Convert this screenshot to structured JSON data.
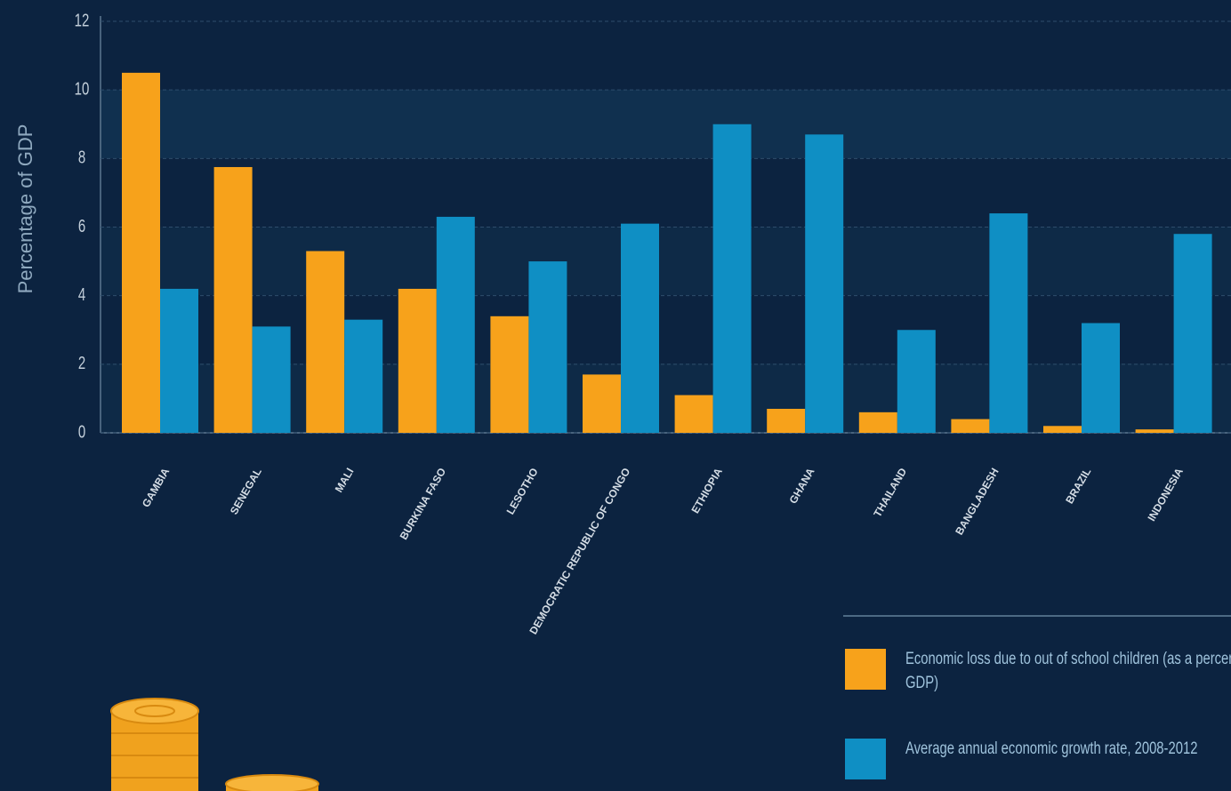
{
  "chart_data": {
    "type": "bar",
    "y_label": "Percentage of GDP",
    "categories": [
      "GAMBIA",
      "SENEGAL",
      "MALI",
      "BURKINA FASO",
      "LESOTHO",
      "DEMOCRATIC REPUBLIC OF CONGO",
      "ETHIOPIA",
      "GHANA",
      "THAILAND",
      "BANGLADESH",
      "BRAZIL",
      "INDONESIA"
    ],
    "series": [
      {
        "name": "Economic loss due to out of school children (as a percentage of GDP)",
        "color": "#f7a21b",
        "values": [
          10.5,
          7.75,
          5.3,
          4.2,
          3.4,
          1.7,
          1.1,
          0.7,
          0.6,
          0.4,
          0.2,
          0.1
        ]
      },
      {
        "name": "Average annual economic growth rate, 2008-2012",
        "color": "#0f8fc4",
        "values": [
          4.2,
          3.1,
          3.3,
          6.3,
          5.0,
          6.1,
          9.0,
          8.7,
          3.0,
          6.4,
          3.2,
          5.8
        ]
      }
    ],
    "ylim": [
      0,
      12
    ],
    "yticks": [
      0,
      2,
      4,
      6,
      8,
      10,
      12
    ],
    "grid": true
  }
}
